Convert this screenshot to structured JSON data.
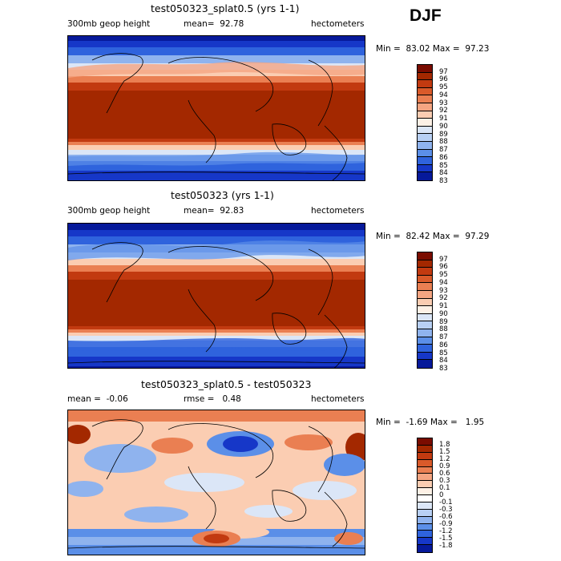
{
  "season": "DJF",
  "panels": [
    {
      "title": "test050323_splat0.5 (yrs 1-1)",
      "left_label": "300mb geop height",
      "mean_text": "mean=  92.78",
      "units": "hectometers",
      "min_max": "Min =  83.02 Max =  97.23",
      "colorbar_labels": [
        "97",
        "96",
        "95",
        "94",
        "93",
        "92",
        "91",
        "90",
        "89",
        "88",
        "87",
        "86",
        "85",
        "84",
        "83"
      ],
      "colorbar_colors": [
        "#7a0c00",
        "#a32800",
        "#c23a10",
        "#d95a2a",
        "#ea7f52",
        "#f5a582",
        "#fbcdb2",
        "#fdf1e6",
        "#dbe6f7",
        "#b8d0f4",
        "#8fb3ee",
        "#5b8fe8",
        "#2f63dd",
        "#1637c8",
        "#06199a"
      ]
    },
    {
      "title": "test050323 (yrs 1-1)",
      "left_label": "300mb geop height",
      "mean_text": "mean=  92.83",
      "units": "hectometers",
      "min_max": "Min =  82.42 Max =  97.29",
      "colorbar_labels": [
        "97",
        "96",
        "95",
        "94",
        "93",
        "92",
        "91",
        "90",
        "89",
        "88",
        "87",
        "86",
        "85",
        "84",
        "83"
      ],
      "colorbar_colors": [
        "#7a0c00",
        "#a32800",
        "#c23a10",
        "#d95a2a",
        "#ea7f52",
        "#f5a582",
        "#fbcdb2",
        "#fdf1e6",
        "#dbe6f7",
        "#b8d0f4",
        "#8fb3ee",
        "#5b8fe8",
        "#2f63dd",
        "#1637c8",
        "#06199a"
      ]
    },
    {
      "title": "test050323_splat0.5 - test050323",
      "left_label": "mean =  -0.06",
      "mean_text": "rmse =   0.48",
      "units": "hectometers",
      "min_max": "Min =  -1.69 Max =   1.95",
      "colorbar_labels": [
        "1.8",
        "1.5",
        "1.2",
        "0.9",
        "0.6",
        "0.3",
        "0.1",
        "0",
        "-0.1",
        "-0.3",
        "-0.6",
        "-0.9",
        "-1.2",
        "-1.5",
        "-1.8"
      ],
      "colorbar_colors": [
        "#7a0c00",
        "#a32800",
        "#c23a10",
        "#d95a2a",
        "#ea7f52",
        "#f5a582",
        "#fbcdb2",
        "#fdf1e6",
        "#ffffff",
        "#dbe6f7",
        "#b8d0f4",
        "#8fb3ee",
        "#5b8fe8",
        "#2f63dd",
        "#1637c8",
        "#06199a"
      ]
    }
  ]
}
